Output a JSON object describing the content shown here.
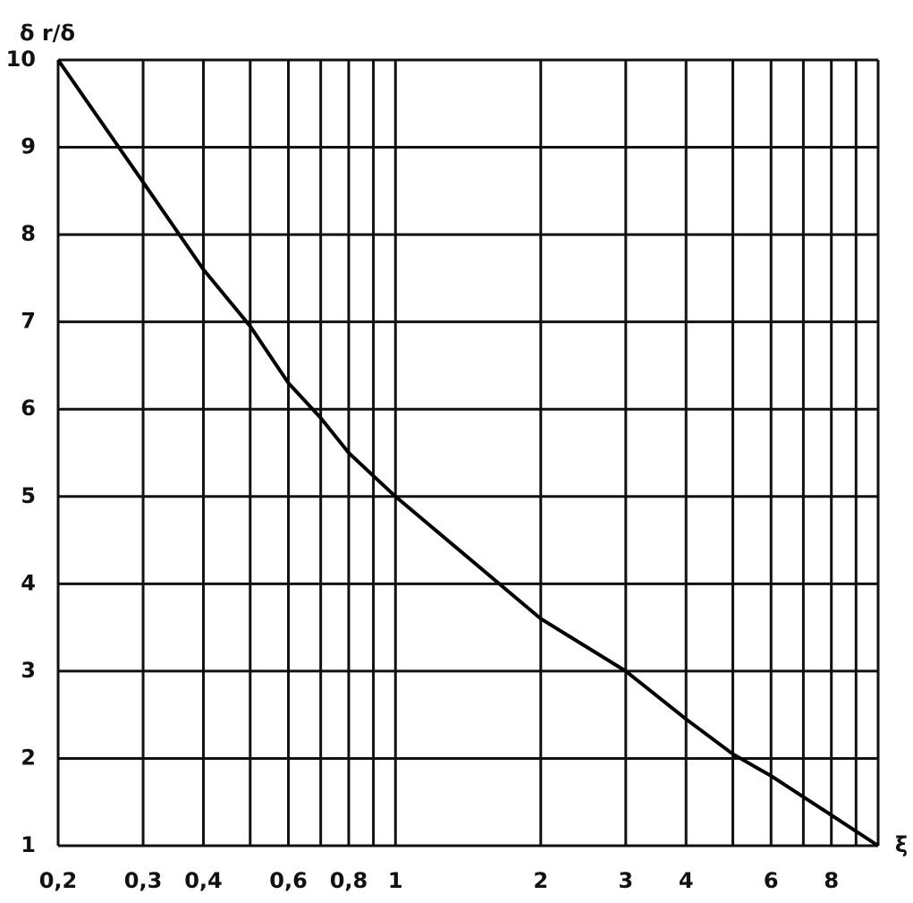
{
  "chart_data": {
    "type": "line",
    "ylabel": "δ r/δ",
    "xlabel": "ξ",
    "x": [
      0.2,
      0.3,
      0.4,
      0.5,
      0.6,
      0.7,
      0.8,
      1,
      2,
      3,
      4,
      5,
      6,
      8,
      10
    ],
    "series": [
      {
        "color": "#000000",
        "values": [
          10,
          8.6,
          7.6,
          6.95,
          6.3,
          5.9,
          5.5,
          5,
          3.6,
          3,
          2.45,
          2.05,
          1.8,
          1.35,
          1
        ]
      }
    ],
    "xscale": "log",
    "xlim": [
      0.2,
      10
    ],
    "ylim": [
      1,
      10
    ],
    "xticks": [
      {
        "value": 0.2,
        "label": "0,2"
      },
      {
        "value": 0.3,
        "label": "0,3"
      },
      {
        "value": 0.4,
        "label": "0,4"
      },
      {
        "value": 0.6,
        "label": "0,6"
      },
      {
        "value": 0.8,
        "label": "0,8"
      },
      1,
      2,
      3,
      4,
      6,
      8
    ],
    "x_minor_ticks": [
      0.5,
      0.7,
      0.9,
      5,
      7,
      9,
      10
    ],
    "yticks": [
      1,
      2,
      3,
      4,
      5,
      6,
      7,
      8,
      9,
      10
    ],
    "grid": true
  }
}
